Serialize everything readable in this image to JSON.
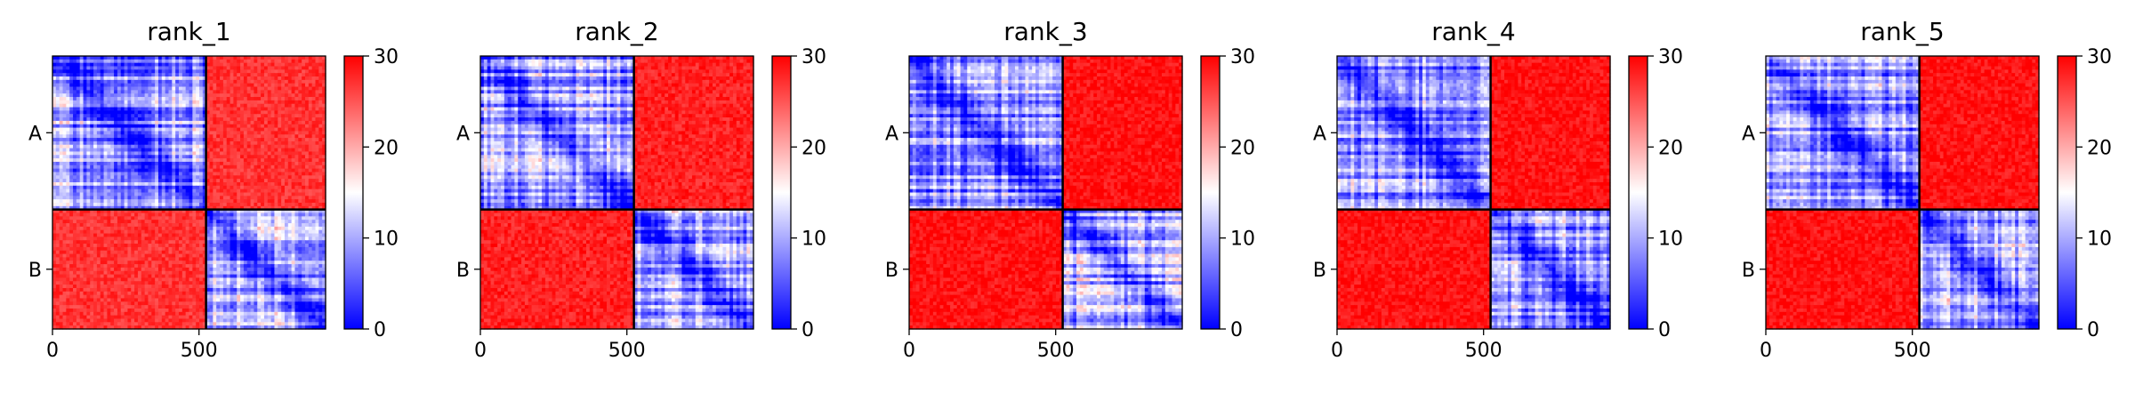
{
  "chart_data": {
    "type": "heatmap",
    "colormap": {
      "name": "bwr",
      "vmin": 0,
      "vmax": 30,
      "colors": [
        "#0000ff",
        "#ffffff",
        "#ff0000"
      ]
    },
    "colorbar_ticks": [
      "0",
      "10",
      "20",
      "30"
    ],
    "x_ticks": [
      {
        "value": 0,
        "label": "0"
      },
      {
        "value": 500,
        "label": "500"
      }
    ],
    "extent": [
      0,
      932
    ],
    "chain_break": 524,
    "chains": [
      "A",
      "B"
    ],
    "panels": [
      {
        "title": "rank_1",
        "domain_pae": [
          [
            9,
            27
          ],
          [
            27,
            11
          ]
        ],
        "diag_pae": 2
      },
      {
        "title": "rank_2",
        "domain_pae": [
          [
            9,
            28
          ],
          [
            28,
            10
          ]
        ],
        "diag_pae": 2
      },
      {
        "title": "rank_3",
        "domain_pae": [
          [
            9,
            29
          ],
          [
            29,
            10
          ]
        ],
        "diag_pae": 2
      },
      {
        "title": "rank_4",
        "domain_pae": [
          [
            9,
            29
          ],
          [
            29,
            10
          ]
        ],
        "diag_pae": 2
      },
      {
        "title": "rank_5",
        "domain_pae": [
          [
            9,
            29
          ],
          [
            29,
            10
          ]
        ],
        "diag_pae": 2
      }
    ]
  }
}
